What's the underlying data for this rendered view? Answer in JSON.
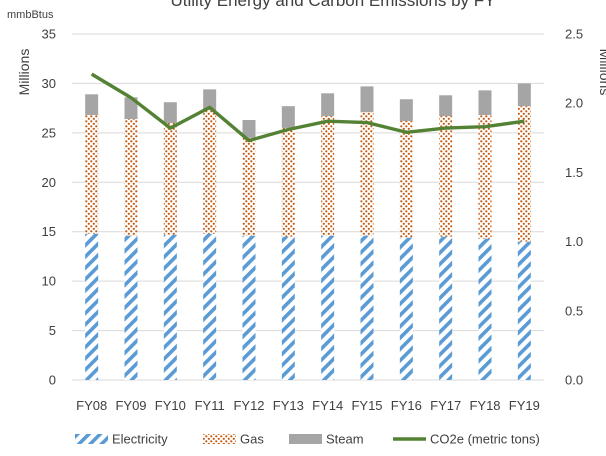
{
  "chart_data": {
    "type": "bar",
    "subtype": "stacked-bar-with-line",
    "title": "Utility Energy and Carbon Emissions by FY",
    "unit_label": "mmbBtus",
    "ylabel_left": "Millions",
    "ylabel_right": "Millions",
    "categories": [
      "FY08",
      "FY09",
      "FY10",
      "FY11",
      "FY12",
      "FY13",
      "FY14",
      "FY15",
      "FY16",
      "FY17",
      "FY18",
      "FY19"
    ],
    "ylim_left": [
      0,
      35
    ],
    "yticks_left": [
      "0",
      "5",
      "10",
      "15",
      "20",
      "25",
      "30",
      "35"
    ],
    "ylim_right": [
      0,
      2.5
    ],
    "yticks_right": [
      "0.0",
      "0.5",
      "1.0",
      "1.5",
      "2.0",
      "2.5"
    ],
    "series": [
      {
        "name": "Electricity",
        "kind": "bar",
        "axis": "left",
        "pattern": "diagonal-stripes",
        "color": "#5b9bd5",
        "values": [
          14.8,
          14.6,
          14.7,
          14.8,
          14.6,
          14.5,
          14.6,
          14.6,
          14.4,
          14.5,
          14.3,
          14.0
        ]
      },
      {
        "name": "Gas",
        "kind": "bar",
        "axis": "left",
        "pattern": "dots",
        "color": "#c55a11",
        "values": [
          12.0,
          11.8,
          11.3,
          12.5,
          9.9,
          11.0,
          12.1,
          12.5,
          11.8,
          12.2,
          12.5,
          13.7
        ]
      },
      {
        "name": "Steam",
        "kind": "bar",
        "axis": "left",
        "pattern": "solid",
        "color": "#a5a5a5",
        "values": [
          2.1,
          2.2,
          2.1,
          2.1,
          1.8,
          2.2,
          2.3,
          2.6,
          2.2,
          2.1,
          2.5,
          2.3
        ]
      },
      {
        "name": "CO2e (metric tons)",
        "kind": "line",
        "axis": "right",
        "color": "#548235",
        "values": [
          2.21,
          2.04,
          1.82,
          1.97,
          1.73,
          1.81,
          1.87,
          1.86,
          1.79,
          1.82,
          1.83,
          1.87
        ]
      }
    ],
    "grid": true,
    "legend_position": "bottom"
  }
}
